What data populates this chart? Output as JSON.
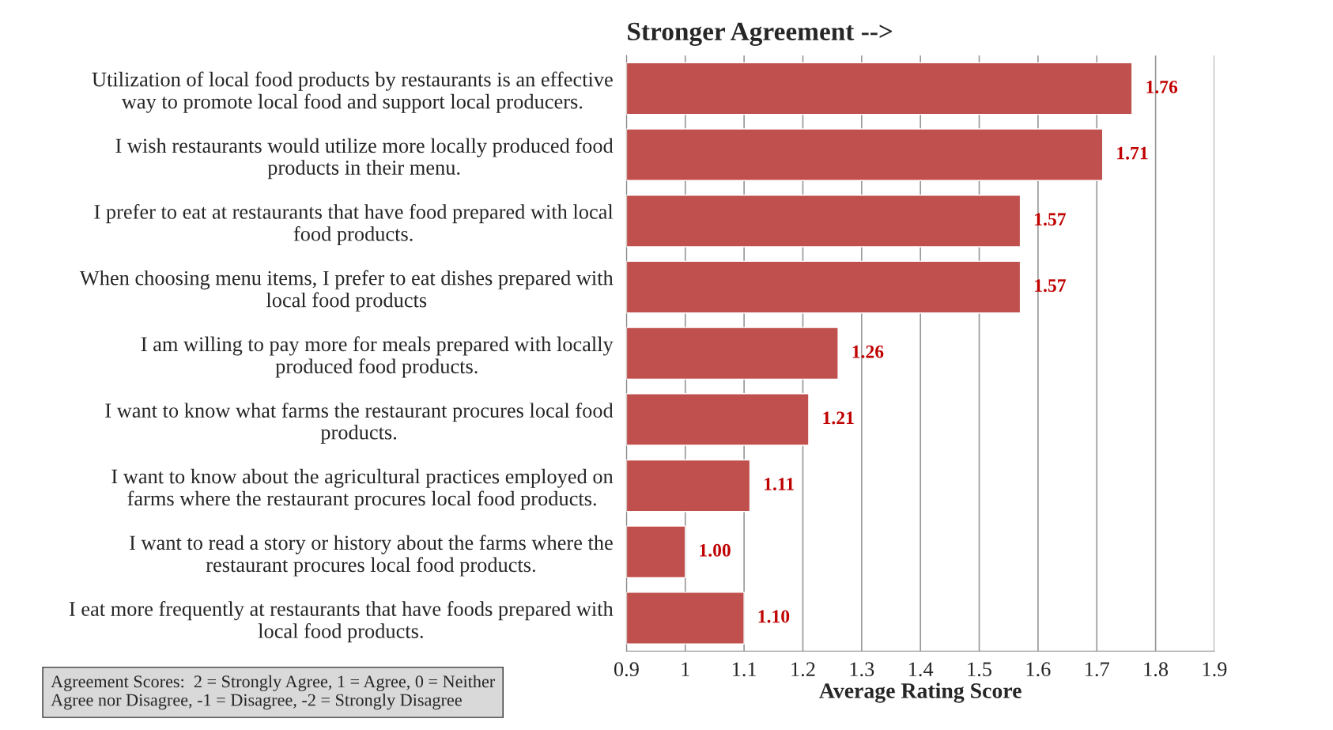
{
  "chart_data": {
    "type": "bar",
    "orientation": "horizontal",
    "title": "Stronger Agreement -->",
    "xlabel": "Average Rating Score",
    "categories": [
      "Utilization of local food products by restaurants is an effective\nway to promote local food and support local producers.",
      "I wish restaurants would utilize more locally produced food\nproducts in their menu.",
      "I prefer to eat at restaurants that have food prepared with local\nfood products.",
      "When choosing menu items, I prefer to eat dishes prepared with\nlocal food products",
      "I am willing to pay more for meals prepared with locally\nproduced food products.",
      "I want to know what farms the restaurant procures local food\nproducts.",
      "I want to know about the agricultural practices employed on\nfarms where the restaurant procures local food products.",
      "I want to read a story or history about the farms where the\nrestaurant procures local food products.",
      "I eat more frequently at restaurants that have foods prepared with\nlocal food products."
    ],
    "values": [
      1.76,
      1.71,
      1.57,
      1.57,
      1.26,
      1.21,
      1.11,
      1.0,
      1.1
    ],
    "value_labels": [
      "1.76",
      "1.71",
      "1.57",
      "1.57",
      "1.26",
      "1.21",
      "1.11",
      "1.00",
      "1.10"
    ],
    "color": "#c0504d",
    "xlim": [
      0.9,
      1.9
    ],
    "xticks": [
      0.9,
      1,
      1.1,
      1.2,
      1.3,
      1.4,
      1.5,
      1.6,
      1.7,
      1.8,
      1.9
    ],
    "grid": "x",
    "annotations": [
      "Agreement Scores:  2 = Strongly Agree, 1 = Agree, 0 = Neither\nAgree nor Disagree, -1 = Disagree, -2 = Strongly Disagree"
    ]
  }
}
